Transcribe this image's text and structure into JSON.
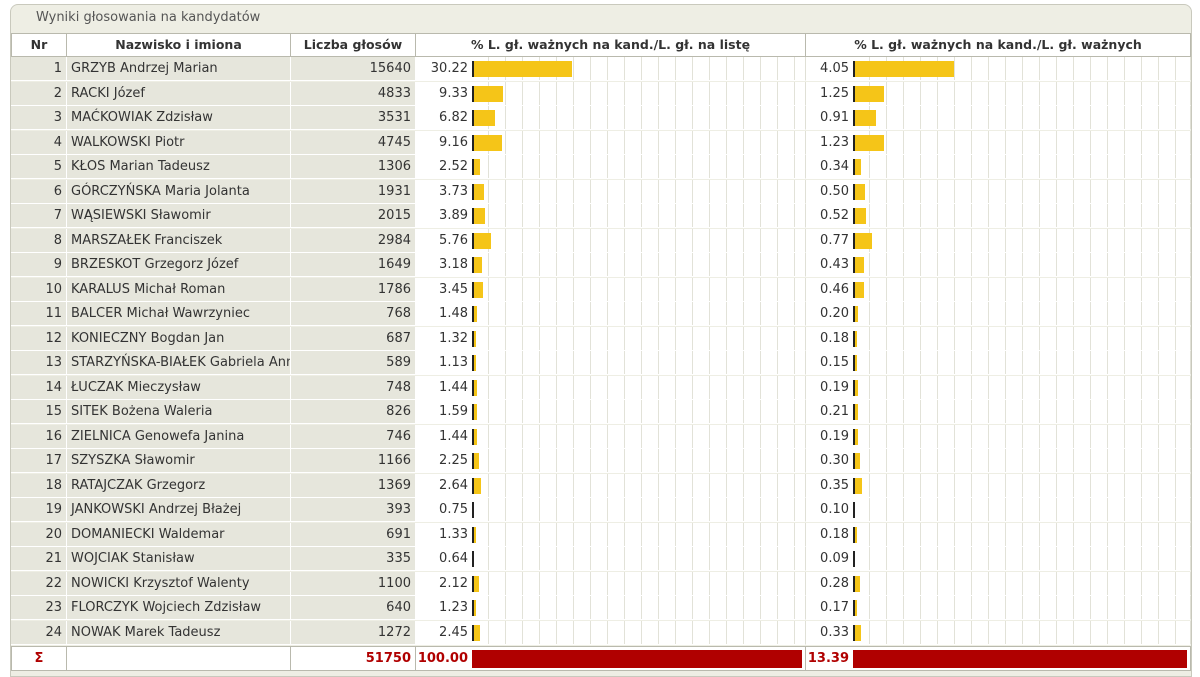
{
  "panel": {
    "title": "Wyniki głosowania na kandydatów"
  },
  "headers": {
    "nr": "Nr",
    "name": "Nazwisko i imiona",
    "votes": "Liczba głosów",
    "pct_list": "% L. gł. ważnych na kand./L. gł. na listę",
    "pct_valid": "% L. gł. ważnych na kand./L. gł. ważnych"
  },
  "colors": {
    "bar": "#f5c518",
    "total": "#b00000"
  },
  "scale": {
    "pct_list_max": 100,
    "pct_valid_max": 13.39
  },
  "rows": [
    {
      "nr": "1",
      "name": "GRZYB Andrzej Marian",
      "votes": "15640",
      "pct_list": "30.22",
      "pct_valid": "4.05"
    },
    {
      "nr": "2",
      "name": "RACKI Józef",
      "votes": "4833",
      "pct_list": "9.33",
      "pct_valid": "1.25"
    },
    {
      "nr": "3",
      "name": "MAĆKOWIAK Zdzisław",
      "votes": "3531",
      "pct_list": "6.82",
      "pct_valid": "0.91"
    },
    {
      "nr": "4",
      "name": "WALKOWSKI Piotr",
      "votes": "4745",
      "pct_list": "9.16",
      "pct_valid": "1.23"
    },
    {
      "nr": "5",
      "name": "KŁOS Marian Tadeusz",
      "votes": "1306",
      "pct_list": "2.52",
      "pct_valid": "0.34"
    },
    {
      "nr": "6",
      "name": "GÓRCZYŃSKA Maria Jolanta",
      "votes": "1931",
      "pct_list": "3.73",
      "pct_valid": "0.50"
    },
    {
      "nr": "7",
      "name": "WĄSIEWSKI Sławomir",
      "votes": "2015",
      "pct_list": "3.89",
      "pct_valid": "0.52"
    },
    {
      "nr": "8",
      "name": "MARSZAŁEK Franciszek",
      "votes": "2984",
      "pct_list": "5.76",
      "pct_valid": "0.77"
    },
    {
      "nr": "9",
      "name": "BRZESKOT Grzegorz Józef",
      "votes": "1649",
      "pct_list": "3.18",
      "pct_valid": "0.43"
    },
    {
      "nr": "10",
      "name": "KARALUS Michał Roman",
      "votes": "1786",
      "pct_list": "3.45",
      "pct_valid": "0.46"
    },
    {
      "nr": "11",
      "name": "BALCER Michał Wawrzyniec",
      "votes": "768",
      "pct_list": "1.48",
      "pct_valid": "0.20"
    },
    {
      "nr": "12",
      "name": "KONIECZNY Bogdan Jan",
      "votes": "687",
      "pct_list": "1.32",
      "pct_valid": "0.18"
    },
    {
      "nr": "13",
      "name": "STARZYŃSKA-BIAŁEK Gabriela Anna",
      "votes": "589",
      "pct_list": "1.13",
      "pct_valid": "0.15"
    },
    {
      "nr": "14",
      "name": "ŁUCZAK Mieczysław",
      "votes": "748",
      "pct_list": "1.44",
      "pct_valid": "0.19"
    },
    {
      "nr": "15",
      "name": "SITEK Bożena Waleria",
      "votes": "826",
      "pct_list": "1.59",
      "pct_valid": "0.21"
    },
    {
      "nr": "16",
      "name": "ZIELNICA Genowefa Janina",
      "votes": "746",
      "pct_list": "1.44",
      "pct_valid": "0.19"
    },
    {
      "nr": "17",
      "name": "SZYSZKA Sławomir",
      "votes": "1166",
      "pct_list": "2.25",
      "pct_valid": "0.30"
    },
    {
      "nr": "18",
      "name": "RATAJCZAK Grzegorz",
      "votes": "1369",
      "pct_list": "2.64",
      "pct_valid": "0.35"
    },
    {
      "nr": "19",
      "name": "JANKOWSKI Andrzej Błażej",
      "votes": "393",
      "pct_list": "0.75",
      "pct_valid": "0.10"
    },
    {
      "nr": "20",
      "name": "DOMANIECKI Waldemar",
      "votes": "691",
      "pct_list": "1.33",
      "pct_valid": "0.18"
    },
    {
      "nr": "21",
      "name": "WOJCIAK Stanisław",
      "votes": "335",
      "pct_list": "0.64",
      "pct_valid": "0.09"
    },
    {
      "nr": "22",
      "name": "NOWICKI Krzysztof Walenty",
      "votes": "1100",
      "pct_list": "2.12",
      "pct_valid": "0.28"
    },
    {
      "nr": "23",
      "name": "FLORCZYK Wojciech Zdzisław",
      "votes": "640",
      "pct_list": "1.23",
      "pct_valid": "0.17"
    },
    {
      "nr": "24",
      "name": "NOWAK Marek Tadeusz",
      "votes": "1272",
      "pct_list": "2.45",
      "pct_valid": "0.33"
    }
  ],
  "total": {
    "symbol": "Σ",
    "name": "",
    "votes": "51750",
    "pct_list": "100.00",
    "pct_valid": "13.39"
  }
}
